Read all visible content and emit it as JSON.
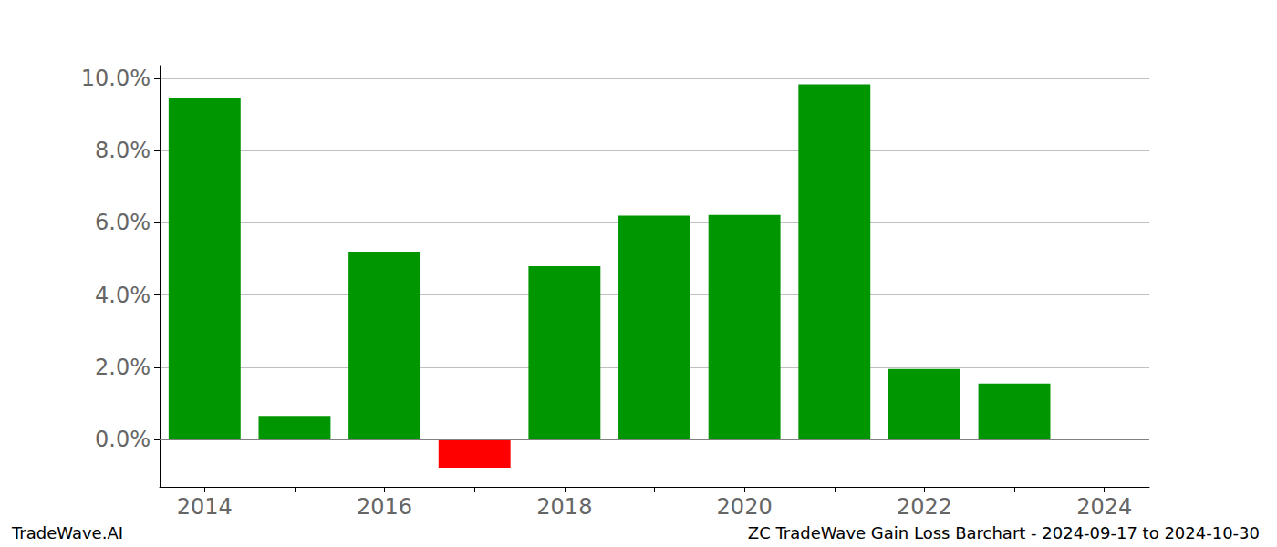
{
  "chart_data": {
    "type": "bar",
    "title": "ZC TradeWave Gain Loss Barchart - 2024-09-17 to 2024-10-30",
    "annotations": [
      "TradeWave.AI"
    ],
    "categories": [
      "2014",
      null,
      "2016",
      null,
      "2018",
      null,
      "2020",
      null,
      "2022",
      null,
      "2024"
    ],
    "values": [
      9.45,
      0.65,
      5.2,
      -0.78,
      4.8,
      6.2,
      6.22,
      9.83,
      1.95,
      1.55,
      null
    ],
    "colors": [
      "#009600",
      "#009600",
      "#009600",
      "#ff0000",
      "#009600",
      "#009600",
      "#009600",
      "#009600",
      "#009600",
      "#009600",
      "#009600"
    ],
    "ylim": [
      -1.31,
      10.35
    ],
    "yticks": [
      {
        "value": 0,
        "label": "0.0%"
      },
      {
        "value": 2,
        "label": "2.0%"
      },
      {
        "value": 4,
        "label": "4.0%"
      },
      {
        "value": 6,
        "label": "6.0%"
      },
      {
        "value": 8,
        "label": "8.0%"
      },
      {
        "value": 10,
        "label": "10.0%"
      }
    ],
    "grid": true
  }
}
